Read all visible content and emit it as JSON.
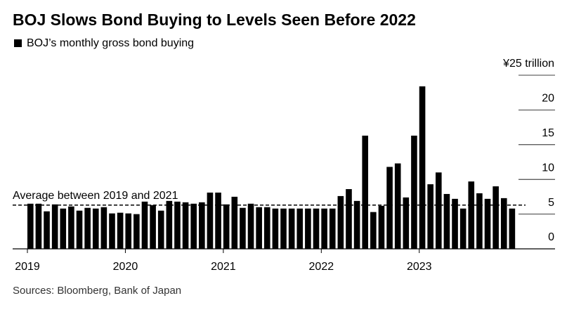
{
  "chart_data": {
    "type": "bar",
    "title": "BOJ Slows Bond Buying to Levels Seen Before 2022",
    "source": "Sources: Bloomberg, Bank of Japan",
    "series": [
      {
        "name": "BOJ’s monthly gross bond buying",
        "color": "#000000",
        "values": [
          6.5,
          6.5,
          5.4,
          6.4,
          5.8,
          6.1,
          5.5,
          5.9,
          5.8,
          6.0,
          5.1,
          5.2,
          5.1,
          5.0,
          6.8,
          6.3,
          5.5,
          6.9,
          6.8,
          6.7,
          6.5,
          6.7,
          8.1,
          8.1,
          6.4,
          7.5,
          5.9,
          6.5,
          6.0,
          6.0,
          5.8,
          5.8,
          5.8,
          5.8,
          5.8,
          5.8,
          5.8,
          5.8,
          7.6,
          8.6,
          6.9,
          16.3,
          5.3,
          6.2,
          11.8,
          12.3,
          7.4,
          16.3,
          23.4,
          9.3,
          11.0,
          7.9,
          7.2,
          5.8,
          9.7,
          8.0,
          7.2,
          9.0,
          7.3,
          5.8
        ]
      }
    ],
    "categories": [
      "2019",
      null,
      null,
      null,
      null,
      null,
      null,
      null,
      null,
      null,
      null,
      null,
      "2020",
      null,
      null,
      null,
      null,
      null,
      null,
      null,
      null,
      null,
      null,
      null,
      "2021",
      null,
      null,
      null,
      null,
      null,
      null,
      null,
      null,
      null,
      null,
      null,
      "2022",
      null,
      null,
      null,
      null,
      null,
      null,
      null,
      null,
      null,
      null,
      null,
      "2023",
      null,
      null,
      null,
      null,
      null,
      null,
      null,
      null,
      null,
      null,
      null
    ],
    "ylim": [
      0,
      25
    ],
    "yticks": [
      0,
      5,
      10,
      15,
      20,
      {
        "value": 25,
        "label": "¥25 trillion"
      }
    ],
    "reference_line": {
      "label": "Average between 2019 and 2021",
      "value": 6.3
    }
  }
}
